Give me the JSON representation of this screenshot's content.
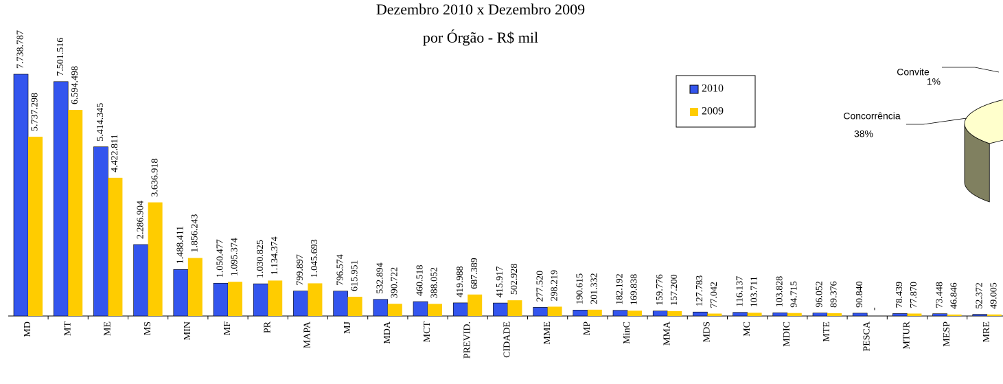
{
  "chart_data": [
    {
      "type": "bar",
      "title": "Dezembro 2010 x Dezembro 2009",
      "subtitle": "por Órgão - R$ mil",
      "categories": [
        "MD",
        "MT",
        "ME",
        "MS",
        "MIN",
        "MF",
        "PR",
        "MAPA",
        "MJ",
        "MDA",
        "MCT",
        "PREVID.",
        "CIDADE",
        "MME",
        "MP",
        "MinC",
        "MMA",
        "MDS",
        "MC",
        "MDIC",
        "MTE",
        "PESCA",
        "MTUR",
        "MESP",
        "MRE"
      ],
      "series": [
        {
          "name": "2010",
          "color": "#3355ee",
          "values": [
            7738787,
            7501516,
            5414345,
            2286904,
            1488411,
            1050477,
            1030825,
            799897,
            796574,
            532894,
            460518,
            419988,
            415917,
            277520,
            190615,
            182192,
            159776,
            127783,
            116137,
            103828,
            96052,
            90840,
            78439,
            73448,
            52372
          ],
          "value_labels": [
            "7.738.787",
            "7.501.516",
            "5.414.345",
            "2.286.904",
            "1.488.411",
            "1.050.477",
            "1.030.825",
            "799.897",
            "796.574",
            "532.894",
            "460.518",
            "419.988",
            "415.917",
            "277.520",
            "190.615",
            "182.192",
            "159.776",
            "127.783",
            "116.137",
            "103.828",
            "96.052",
            "90.840",
            "78.439",
            "73.448",
            "52.372"
          ]
        },
        {
          "name": "2009",
          "color": "#ffcc00",
          "values": [
            5737298,
            6594498,
            4422811,
            3636918,
            1856243,
            1095374,
            1134374,
            1045693,
            615951,
            390722,
            388052,
            687389,
            502928,
            298219,
            201332,
            169838,
            157200,
            77042,
            103711,
            94715,
            89376,
            0,
            77870,
            46846,
            49005
          ],
          "value_labels": [
            "5.737.298",
            "6.594.498",
            "4.422.811",
            "3.636.918",
            "1.856.243",
            "1.095.374",
            "1.134.374",
            "1.045.693",
            "615.951",
            "390.722",
            "388.052",
            "687.389",
            "502.928",
            "298.219",
            "201.332",
            "169.838",
            "157.200",
            "77.042",
            "103.711",
            "94.715",
            "89.376",
            "-",
            "77.870",
            "46.846",
            "49.005"
          ]
        }
      ],
      "legend": "right"
    },
    {
      "type": "pie",
      "categories": [
        "Convite",
        "Concorrência"
      ],
      "values": [
        1,
        38
      ],
      "value_labels": [
        "1%",
        "38%"
      ],
      "colors": [
        "#ffffcc",
        "#ffffcc"
      ]
    }
  ]
}
